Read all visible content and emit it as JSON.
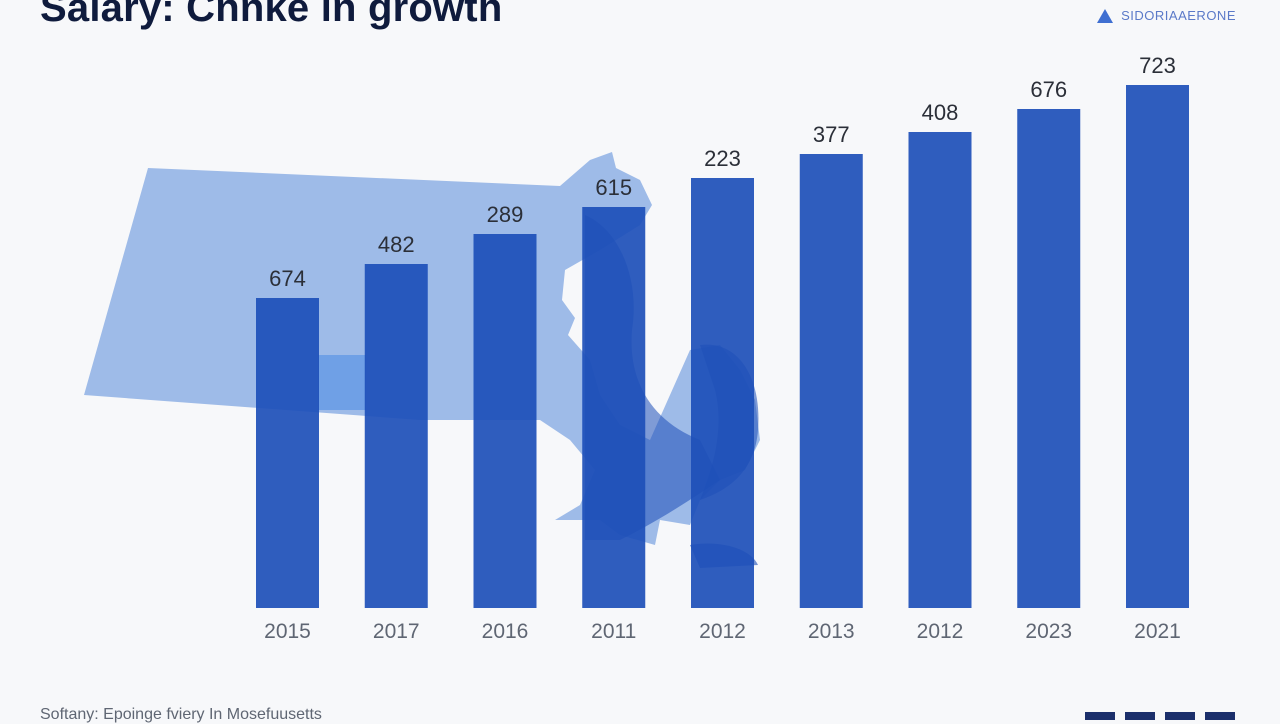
{
  "title": "Salary: Cnnke in growth",
  "brand": {
    "label": "SIDORIAAERONE",
    "icon": "drop-icon"
  },
  "source": "Softany: Epoinge fviery In Mosefuusetts",
  "colors": {
    "bar": "#1d4fb8",
    "map": "#9ebbe8",
    "map_dark": "#1d4fb8",
    "label": "#2b2f38",
    "tick": "#5f6673"
  },
  "chart_data": {
    "type": "bar",
    "title": "Salary: Cnnke in growth",
    "categories": [
      "2015",
      "2017",
      "2016",
      "2011",
      "2012",
      "2013",
      "2012",
      "2023",
      "2021"
    ],
    "values": [
      674,
      482,
      289,
      615,
      223,
      377,
      408,
      676,
      723
    ],
    "bar_heights_relative": [
      310,
      344,
      374,
      401,
      430,
      454,
      476,
      499,
      523
    ],
    "xlabel": "",
    "ylabel": "",
    "grid": false,
    "legend": "none"
  }
}
